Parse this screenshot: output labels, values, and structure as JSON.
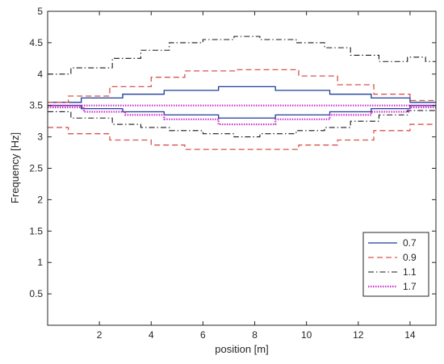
{
  "chart_data": {
    "type": "line",
    "title": "",
    "xlabel": "position [m]",
    "ylabel": "Frequency [Hz]",
    "xlim": [
      0,
      15
    ],
    "ylim": [
      0,
      5
    ],
    "x_ticks": [
      2,
      4,
      6,
      8,
      10,
      12,
      14
    ],
    "y_ticks": [
      0.5,
      1,
      1.5,
      2,
      2.5,
      3,
      3.5,
      4,
      4.5,
      5
    ],
    "legend_placement": "bottom-right",
    "grid": false,
    "series": [
      {
        "name": "0.7",
        "color": "#1f3d99",
        "style": "solid",
        "segments": [
          {
            "x0": 0.0,
            "x1": 1.3,
            "lower": 3.5,
            "upper": 3.55
          },
          {
            "x0": 1.3,
            "x1": 2.9,
            "lower": 3.45,
            "upper": 3.62
          },
          {
            "x0": 2.9,
            "x1": 4.5,
            "lower": 3.4,
            "upper": 3.68
          },
          {
            "x0": 4.5,
            "x1": 6.6,
            "lower": 3.35,
            "upper": 3.74
          },
          {
            "x0": 6.6,
            "x1": 8.8,
            "lower": 3.3,
            "upper": 3.8
          },
          {
            "x0": 8.8,
            "x1": 10.9,
            "lower": 3.35,
            "upper": 3.74
          },
          {
            "x0": 10.9,
            "x1": 12.5,
            "lower": 3.4,
            "upper": 3.68
          },
          {
            "x0": 12.5,
            "x1": 14.0,
            "lower": 3.45,
            "upper": 3.62
          },
          {
            "x0": 14.0,
            "x1": 15.0,
            "lower": 3.5,
            "upper": 3.55
          }
        ]
      },
      {
        "name": "0.9",
        "color": "#d9534f",
        "style": "dashed",
        "segments": [
          {
            "x0": 0.0,
            "x1": 0.8,
            "lower": 3.15,
            "upper": 3.55
          },
          {
            "x0": 0.8,
            "x1": 2.4,
            "lower": 3.05,
            "upper": 3.65
          },
          {
            "x0": 2.4,
            "x1": 4.0,
            "lower": 2.95,
            "upper": 3.8
          },
          {
            "x0": 4.0,
            "x1": 5.3,
            "lower": 2.87,
            "upper": 3.95
          },
          {
            "x0": 5.3,
            "x1": 7.3,
            "lower": 2.8,
            "upper": 4.05
          },
          {
            "x0": 7.3,
            "x1": 9.7,
            "lower": 2.8,
            "upper": 4.07
          },
          {
            "x0": 9.7,
            "x1": 11.2,
            "lower": 2.87,
            "upper": 3.97
          },
          {
            "x0": 11.2,
            "x1": 12.6,
            "lower": 2.95,
            "upper": 3.83
          },
          {
            "x0": 12.6,
            "x1": 14.0,
            "lower": 3.1,
            "upper": 3.68
          },
          {
            "x0": 14.0,
            "x1": 15.0,
            "lower": 3.2,
            "upper": 3.58
          }
        ]
      },
      {
        "name": "1.1",
        "color": "#1a1a1a",
        "style": "dashdot",
        "segments": [
          {
            "x0": 0.0,
            "x1": 0.9,
            "lower": 3.4,
            "upper": 4.0
          },
          {
            "x0": 0.9,
            "x1": 2.5,
            "lower": 3.3,
            "upper": 4.1
          },
          {
            "x0": 2.5,
            "x1": 3.6,
            "lower": 3.2,
            "upper": 4.25
          },
          {
            "x0": 3.6,
            "x1": 4.7,
            "lower": 3.15,
            "upper": 4.38
          },
          {
            "x0": 4.7,
            "x1": 6.0,
            "lower": 3.1,
            "upper": 4.5
          },
          {
            "x0": 6.0,
            "x1": 7.2,
            "lower": 3.05,
            "upper": 4.55
          },
          {
            "x0": 7.2,
            "x1": 8.2,
            "lower": 3.0,
            "upper": 4.6
          },
          {
            "x0": 8.2,
            "x1": 9.6,
            "lower": 3.05,
            "upper": 4.55
          },
          {
            "x0": 9.6,
            "x1": 10.7,
            "lower": 3.1,
            "upper": 4.5
          },
          {
            "x0": 10.7,
            "x1": 11.7,
            "lower": 3.15,
            "upper": 4.42
          },
          {
            "x0": 11.7,
            "x1": 12.8,
            "lower": 3.25,
            "upper": 4.3
          },
          {
            "x0": 12.8,
            "x1": 13.9,
            "lower": 3.35,
            "upper": 4.2
          },
          {
            "x0": 13.9,
            "x1": 14.6,
            "lower": 3.42,
            "upper": 4.27
          },
          {
            "x0": 14.6,
            "x1": 15.0,
            "lower": 3.42,
            "upper": 4.2
          }
        ]
      },
      {
        "name": "1.7",
        "color": "#cc33cc",
        "style": "dotted",
        "segments": [
          {
            "x0": 0.0,
            "x1": 1.4,
            "lower": 3.47,
            "upper": 3.5
          },
          {
            "x0": 1.4,
            "x1": 3.0,
            "lower": 3.4,
            "upper": 3.5
          },
          {
            "x0": 3.0,
            "x1": 4.5,
            "lower": 3.35,
            "upper": 3.5
          },
          {
            "x0": 4.5,
            "x1": 6.6,
            "lower": 3.28,
            "upper": 3.5
          },
          {
            "x0": 6.6,
            "x1": 8.8,
            "lower": 3.2,
            "upper": 3.5
          },
          {
            "x0": 8.8,
            "x1": 10.9,
            "lower": 3.28,
            "upper": 3.5
          },
          {
            "x0": 10.9,
            "x1": 12.5,
            "lower": 3.35,
            "upper": 3.5
          },
          {
            "x0": 12.5,
            "x1": 14.0,
            "lower": 3.4,
            "upper": 3.5
          },
          {
            "x0": 14.0,
            "x1": 15.0,
            "lower": 3.47,
            "upper": 3.5
          }
        ]
      }
    ]
  }
}
